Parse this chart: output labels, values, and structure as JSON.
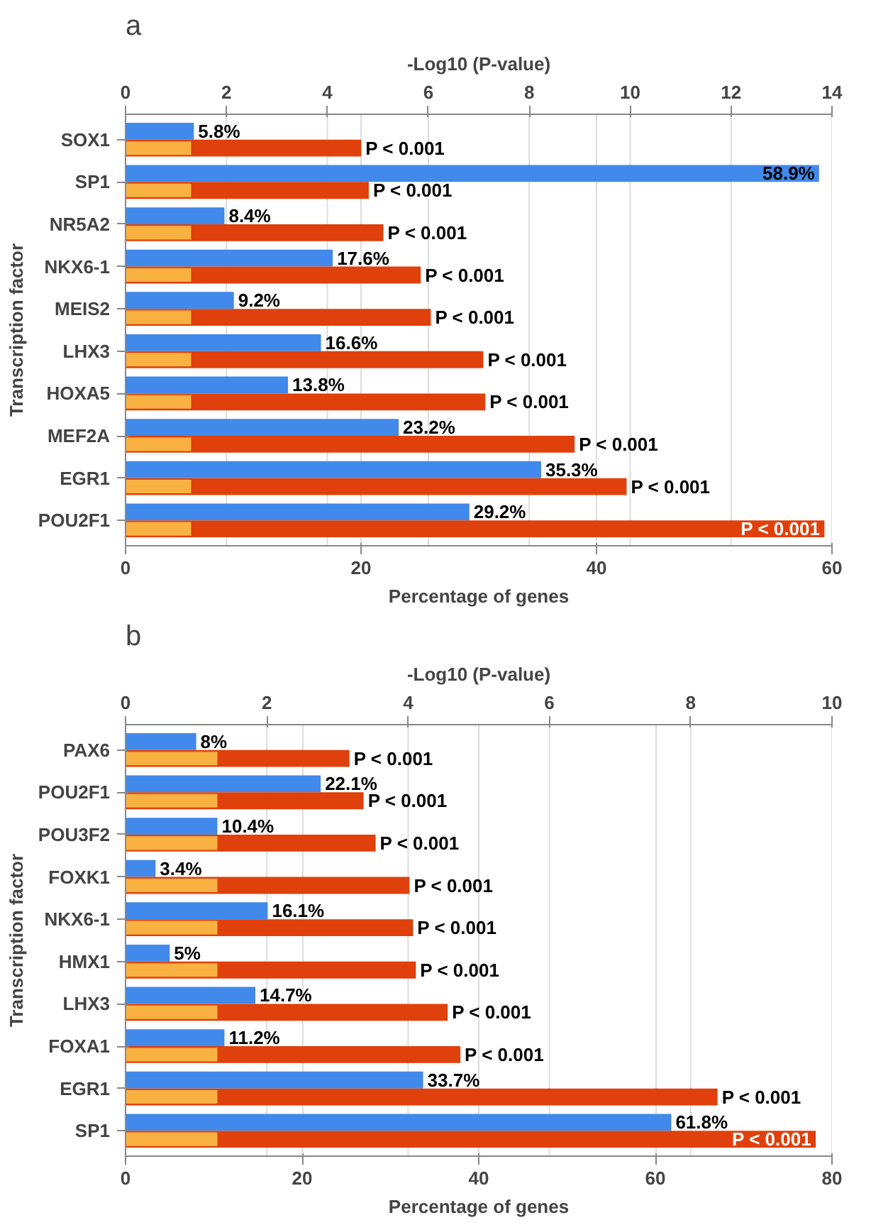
{
  "chart_data": [
    {
      "type": "bar",
      "title": "a",
      "orientation": "horizontal",
      "grid": "x",
      "xlabel": "Percentage of genes",
      "x2label": "-Log10 (P-value)",
      "ylabel": "Transcription factor",
      "categories": [
        "SOX1",
        "SP1",
        "NR5A2",
        "NKX6-1",
        "MEIS2",
        "LHX3",
        "HOXA5",
        "MEF2A",
        "EGR1",
        "POU2F1"
      ],
      "xlim": [
        0,
        60
      ],
      "xticks": [
        0,
        20,
        40,
        60
      ],
      "x2lim": [
        0,
        14
      ],
      "x2ticks": [
        0,
        2,
        4,
        6,
        8,
        10,
        12,
        14
      ],
      "series": [
        {
          "color": "#4189ea",
          "values": [
            5.8,
            58.9,
            8.4,
            17.6,
            9.2,
            16.6,
            13.8,
            23.2,
            35.3,
            29.2
          ],
          "value_labels": [
            "5.8%",
            "58.9%",
            "8.4%",
            "17.6%",
            "9.2%",
            "16.6%",
            "13.8%",
            "23.2%",
            "35.3%",
            "29.2%"
          ]
        },
        {
          "color": "#e0400b",
          "axis": "x2",
          "values": [
            4.67,
            4.82,
            5.11,
            5.85,
            6.05,
            7.09,
            7.13,
            8.9,
            9.93,
            13.85
          ],
          "value_labels": [
            "P < 0.001",
            "P < 0.001",
            "P < 0.001",
            "P < 0.001",
            "P < 0.001",
            "P < 0.001",
            "P < 0.001",
            "P < 0.001",
            "P < 0.001",
            "P < 0.001"
          ]
        },
        {
          "color": "#f9b142",
          "axis": "x2",
          "values": [
            1.3,
            1.3,
            1.3,
            1.3,
            1.3,
            1.3,
            1.3,
            1.3,
            1.3,
            1.3
          ]
        }
      ]
    },
    {
      "type": "bar",
      "title": "b",
      "orientation": "horizontal",
      "grid": "x",
      "xlabel": "Percentage of genes",
      "x2label": "-Log10 (P-value)",
      "ylabel": "Transcription factor",
      "categories": [
        "PAX6",
        "POU2F1",
        "POU3F2",
        "FOXK1",
        "NKX6-1",
        "HMX1",
        "LHX3",
        "FOXA1",
        "EGR1",
        "SP1"
      ],
      "xlim": [
        0,
        80
      ],
      "xticks": [
        0,
        20,
        40,
        60,
        80
      ],
      "x2lim": [
        0,
        10
      ],
      "x2ticks": [
        0,
        2,
        4,
        6,
        8,
        10
      ],
      "series": [
        {
          "color": "#4189ea",
          "values": [
            8,
            22.1,
            10.4,
            3.4,
            16.1,
            5,
            14.7,
            11.2,
            33.7,
            61.8
          ],
          "value_labels": [
            "8%",
            "22.1%",
            "10.4%",
            "3.4%",
            "16.1%",
            "5%",
            "14.7%",
            "11.2%",
            "33.7%",
            "61.8%"
          ]
        },
        {
          "color": "#e0400b",
          "axis": "x2",
          "values": [
            3.17,
            3.37,
            3.54,
            4.02,
            4.07,
            4.11,
            4.56,
            4.74,
            8.38,
            9.77
          ],
          "value_labels": [
            "P < 0.001",
            "P < 0.001",
            "P < 0.001",
            "P < 0.001",
            "P < 0.001",
            "P < 0.001",
            "P < 0.001",
            "P < 0.001",
            "P < 0.001",
            "P < 0.001"
          ]
        },
        {
          "color": "#f9b142",
          "axis": "x2",
          "values": [
            1.3,
            1.3,
            1.3,
            1.3,
            1.3,
            1.3,
            1.3,
            1.3,
            1.3,
            1.3
          ]
        }
      ]
    }
  ]
}
